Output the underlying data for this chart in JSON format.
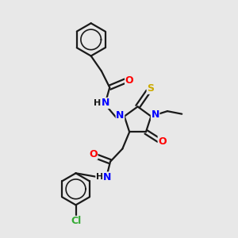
{
  "bg_color": "#e8e8e8",
  "bond_color": "#1a1a1a",
  "N_color": "#0000ff",
  "O_color": "#ff0000",
  "S_color": "#ccaa00",
  "Cl_color": "#33aa33",
  "fig_width": 3.0,
  "fig_height": 3.0,
  "dpi": 100,
  "lw": 1.6,
  "fs": 9,
  "xlim": [
    0,
    10
  ],
  "ylim": [
    0,
    10
  ]
}
